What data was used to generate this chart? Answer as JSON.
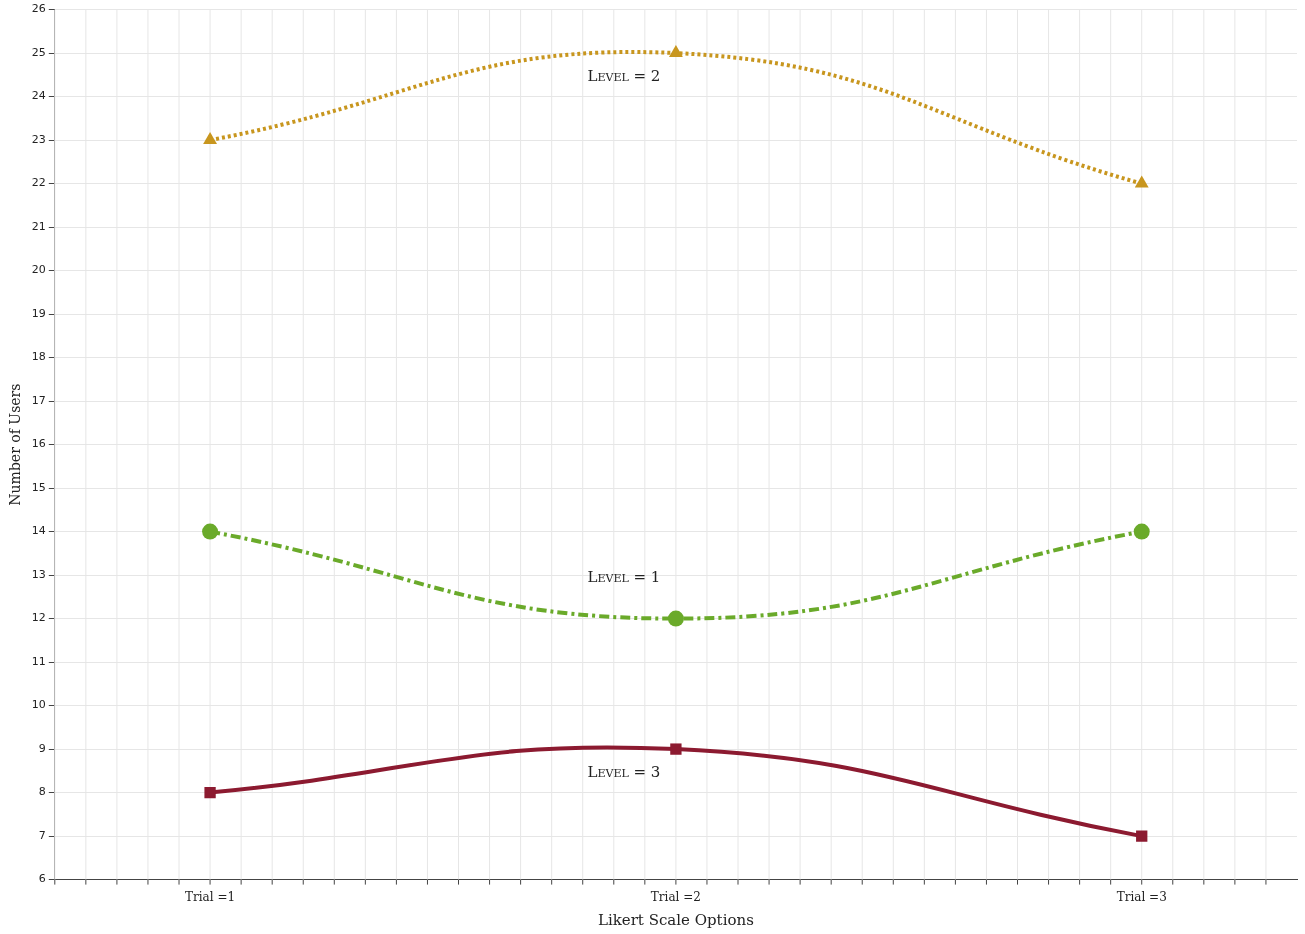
{
  "chart_data": {
    "type": "line",
    "xlabel": "Likert Scale Options",
    "ylabel": "Number of Users",
    "categories": [
      "Trial =1",
      "Trial =2",
      "Trial =3"
    ],
    "series": [
      {
        "name": "Level = 2",
        "color": "#c8961e",
        "values": [
          23,
          25,
          22
        ],
        "marker": "triangle",
        "line_style": "dotted"
      },
      {
        "name": "Level = 1",
        "color": "#6aaa2a",
        "values": [
          14,
          12,
          14
        ],
        "marker": "circle",
        "line_style": "dashdot"
      },
      {
        "name": "Level = 3",
        "color": "#8c1a30",
        "values": [
          8,
          9,
          7
        ],
        "marker": "square",
        "line_style": "solid"
      }
    ],
    "ylim": [
      6,
      26
    ],
    "yticks": [
      6,
      7,
      8,
      9,
      10,
      11,
      12,
      13,
      14,
      15,
      16,
      17,
      18,
      19,
      20,
      21,
      22,
      23,
      24,
      25,
      26
    ],
    "grid": true,
    "legend": false
  }
}
